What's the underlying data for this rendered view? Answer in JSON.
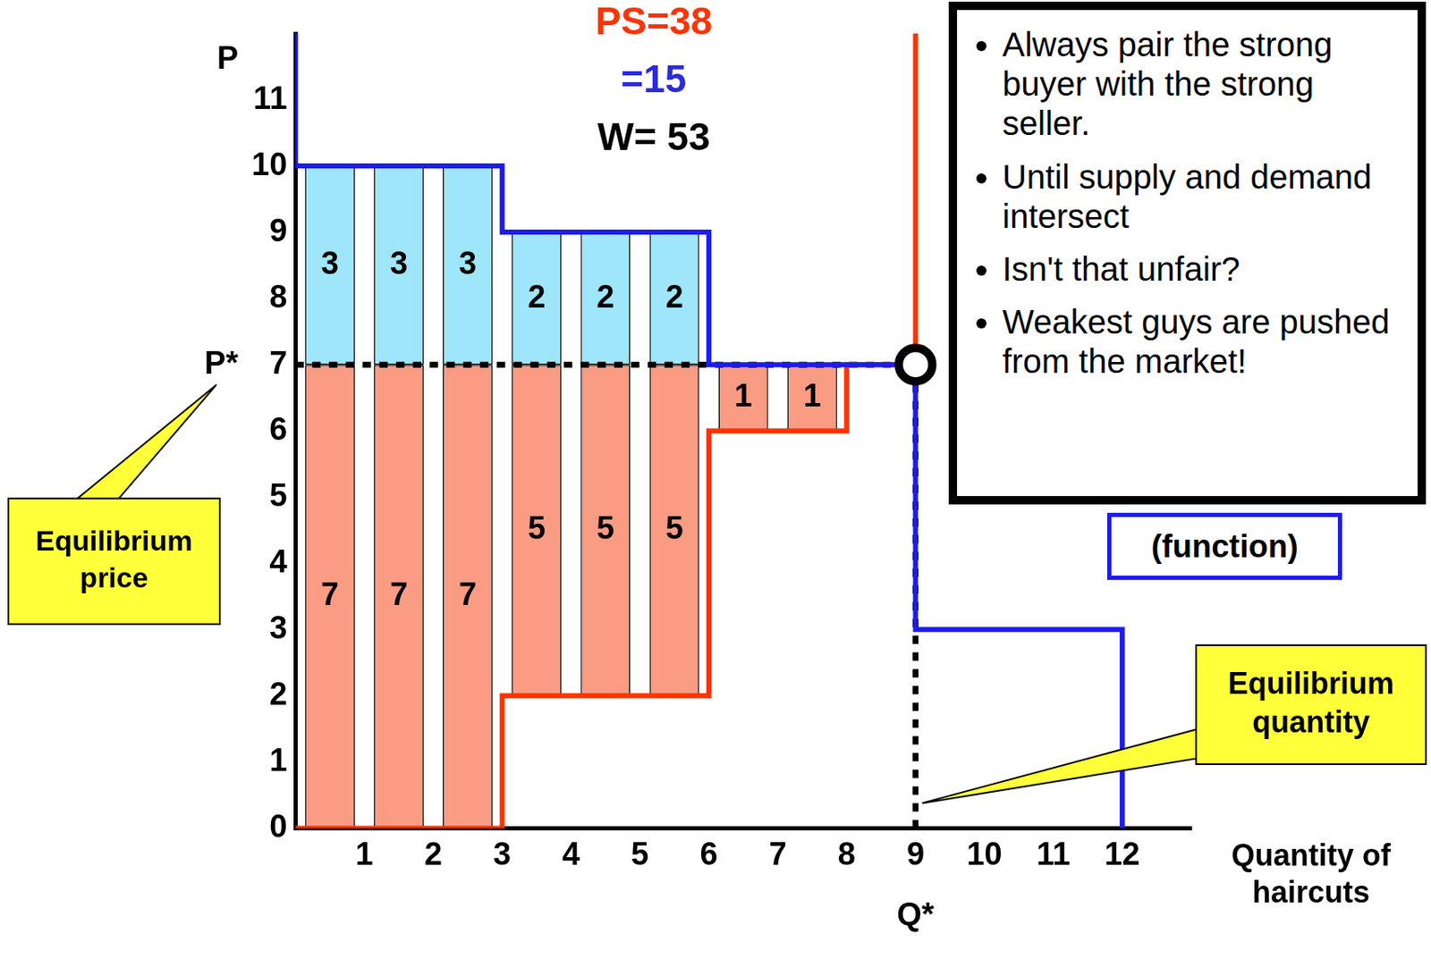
{
  "chart_data": {
    "type": "bar",
    "summary": [
      {
        "text": "PS=38",
        "color": "#ff3300"
      },
      {
        "text": "=15",
        "color": "#2b2bd9"
      },
      {
        "text": "W= 53",
        "color": "#000000"
      }
    ],
    "y_label": "P",
    "x_label": "Quantity of haircuts",
    "xlim": [
      0,
      13
    ],
    "xticks": [
      1,
      2,
      3,
      4,
      5,
      6,
      7,
      8,
      9,
      10,
      11,
      12
    ],
    "ylim": [
      0,
      12
    ],
    "yticks": [
      0,
      1,
      2,
      3,
      4,
      5,
      6,
      7,
      8,
      9,
      10,
      11
    ],
    "grid": false,
    "stacked": true,
    "data_labels": true,
    "x": [
      0.5,
      1.5,
      2.5,
      3.5,
      4.5,
      5.5,
      6.5,
      7.5
    ],
    "base": [
      0,
      0,
      0,
      2,
      2,
      2,
      6,
      6
    ],
    "series": [
      {
        "type": "bar",
        "color": "#fa9b84",
        "values": [
          7,
          7,
          7,
          5,
          5,
          5,
          1,
          1
        ]
      },
      {
        "type": "bar",
        "color": "#9fe6fa",
        "values": [
          3,
          3,
          3,
          2,
          2,
          2,
          null,
          null
        ]
      },
      {
        "type": "line",
        "color": "#1c1cf0",
        "x": [
          0,
          0,
          3,
          3,
          6,
          6,
          9,
          9,
          12,
          12
        ],
        "values": [
          12,
          10,
          10,
          9,
          9,
          7,
          7,
          3,
          3,
          0
        ]
      },
      {
        "type": "line",
        "color": "#ff3300",
        "x": [
          0,
          3,
          3,
          6,
          6,
          8,
          8,
          9,
          9
        ],
        "values": [
          0,
          0,
          2,
          2,
          6,
          6,
          7,
          7,
          12
        ]
      }
    ],
    "equilibrium": {
      "x": 9,
      "y": 7,
      "x_label": "Q*",
      "y_label": "P*",
      "x_callout": "Equilibrium quantity",
      "y_callout": "Equilibrium price"
    },
    "bullets": [
      "Always pair the strong buyer with the strong seller.",
      "Until supply and demand intersect",
      "Isn't that unfair?",
      "Weakest guys are pushed from the market!"
    ],
    "function_label": "(function)"
  }
}
